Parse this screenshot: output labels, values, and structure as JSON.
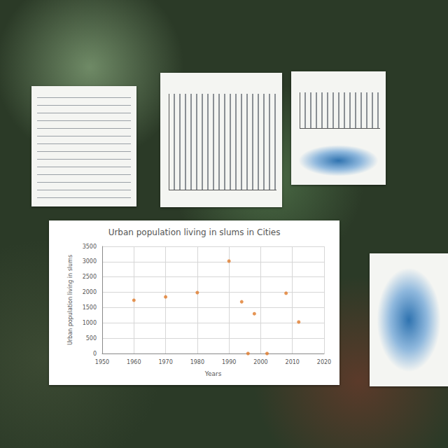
{
  "chart_data": {
    "type": "scatter",
    "title": "Urban population living in slums in Cities",
    "x_label": "Years",
    "y_label": "Urban population living in slums",
    "x": [
      1960,
      1970,
      1980,
      1990,
      1994,
      1998,
      1996,
      2002,
      2008,
      2012
    ],
    "values": [
      1740,
      1850,
      1990,
      3020,
      1690,
      1300,
      0,
      0,
      1970,
      1030
    ],
    "color": "#e07b2a",
    "marker": "circle",
    "xlim": [
      1950,
      2020
    ],
    "xticks": [
      1950,
      1960,
      1970,
      1980,
      1990,
      2000,
      2010,
      2020
    ],
    "ylim": [
      0,
      3500
    ],
    "yticks": [
      0,
      500,
      1000,
      1500,
      2000,
      2500,
      3000,
      3500
    ],
    "grid": true
  }
}
